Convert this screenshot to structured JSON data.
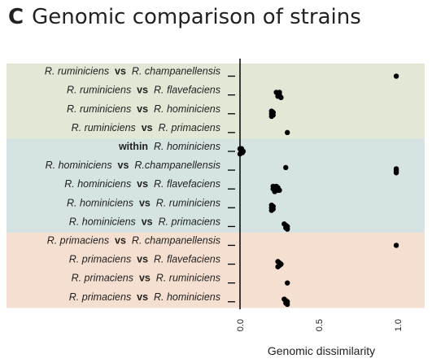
{
  "panel": {
    "letter": "C",
    "title": "Genomic comparison of strains"
  },
  "chart_data": {
    "type": "scatter",
    "title": "Genomic comparison of strains",
    "xlabel": "Genomic dissimilarity",
    "xlim": [
      0,
      1
    ],
    "xticks": [
      "0.0",
      "0.5",
      "1.0"
    ],
    "orientation": "horizontal-rows",
    "groups": [
      {
        "color": "#e2e7d6",
        "rows": [
          {
            "parts": [
              {
                "t": "R. ruminiciens",
                "s": "sp"
              },
              {
                "t": "vs",
                "s": "kw"
              },
              {
                "t": "R. champanellensis",
                "s": "sp"
              }
            ],
            "points": [
              0.99
            ]
          },
          {
            "parts": [
              {
                "t": "R. ruminiciens",
                "s": "sp"
              },
              {
                "t": "vs",
                "s": "kw"
              },
              {
                "t": "R. flavefaciens",
                "s": "sp"
              }
            ],
            "points": [
              0.23,
              0.24,
              0.25,
              0.24,
              0.26,
              0.25
            ]
          },
          {
            "parts": [
              {
                "t": "R. ruminiciens",
                "s": "sp"
              },
              {
                "t": "vs",
                "s": "kw"
              },
              {
                "t": "R. hominiciens",
                "s": "sp"
              }
            ],
            "points": [
              0.2,
              0.21,
              0.2,
              0.21,
              0.2
            ]
          },
          {
            "parts": [
              {
                "t": "R. ruminiciens",
                "s": "sp"
              },
              {
                "t": "vs",
                "s": "kw"
              },
              {
                "t": "R. primaciens",
                "s": "sp"
              }
            ],
            "points": [
              0.3
            ]
          }
        ]
      },
      {
        "color": "#d5e3e3",
        "rows": [
          {
            "parts": [
              {
                "t": "within",
                "s": "kw"
              },
              {
                "t": "R. hominiciens",
                "s": "sp"
              }
            ],
            "points": [
              0.0,
              0.005,
              0.01,
              0.015,
              0.0,
              0.01,
              0.005,
              0.02
            ]
          },
          {
            "parts": [
              {
                "t": "R. hominiciens",
                "s": "sp"
              },
              {
                "t": "vs",
                "s": "kw"
              },
              {
                "t": "R.champanellensis",
                "s": "sp"
              }
            ],
            "points": [
              0.29,
              0.99,
              0.99,
              0.99,
              0.99
            ]
          },
          {
            "parts": [
              {
                "t": "R. hominiciens",
                "s": "sp"
              },
              {
                "t": "vs",
                "s": "kw"
              },
              {
                "t": "R. flavefaciens",
                "s": "sp"
              }
            ],
            "points": [
              0.21,
              0.22,
              0.23,
              0.24,
              0.22,
              0.23,
              0.24,
              0.21,
              0.25,
              0.22
            ]
          },
          {
            "parts": [
              {
                "t": "R. hominiciens",
                "s": "sp"
              },
              {
                "t": "vs",
                "s": "kw"
              },
              {
                "t": "R. ruminiciens",
                "s": "sp"
              }
            ],
            "points": [
              0.2,
              0.21,
              0.2,
              0.21,
              0.2
            ]
          },
          {
            "parts": [
              {
                "t": "R. hominiciens",
                "s": "sp"
              },
              {
                "t": "vs",
                "s": "kw"
              },
              {
                "t": "R. primaciens",
                "s": "sp"
              }
            ],
            "points": [
              0.28,
              0.29,
              0.3,
              0.29,
              0.3
            ]
          }
        ]
      },
      {
        "color": "#f5dfd0",
        "rows": [
          {
            "parts": [
              {
                "t": "R. primaciens",
                "s": "sp"
              },
              {
                "t": "vs",
                "s": "kw"
              },
              {
                "t": "R. champanellensis",
                "s": "sp"
              }
            ],
            "points": [
              0.99
            ]
          },
          {
            "parts": [
              {
                "t": "R. primaciens",
                "s": "sp"
              },
              {
                "t": "vs",
                "s": "kw"
              },
              {
                "t": "R. flavefaciens",
                "s": "sp"
              }
            ],
            "points": [
              0.24,
              0.25,
              0.26,
              0.25,
              0.24
            ]
          },
          {
            "parts": [
              {
                "t": "R. primaciens",
                "s": "sp"
              },
              {
                "t": "vs",
                "s": "kw"
              },
              {
                "t": "R. ruminiciens",
                "s": "sp"
              }
            ],
            "points": [
              0.3
            ]
          },
          {
            "parts": [
              {
                "t": "R. primaciens",
                "s": "sp"
              },
              {
                "t": "vs",
                "s": "kw"
              },
              {
                "t": "R. hominiciens",
                "s": "sp"
              }
            ],
            "points": [
              0.28,
              0.29,
              0.3,
              0.29,
              0.3
            ]
          }
        ]
      }
    ],
    "point_color": "#000000",
    "grid": false,
    "legend": "none"
  }
}
